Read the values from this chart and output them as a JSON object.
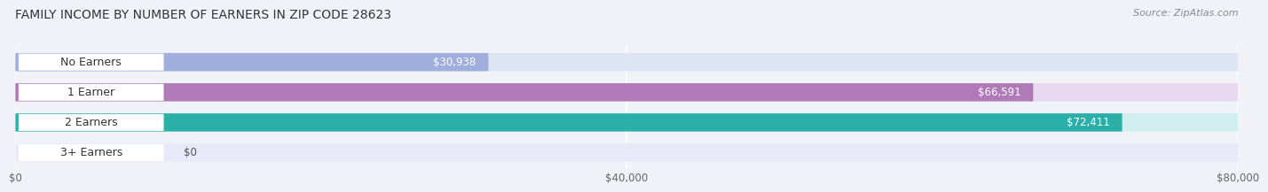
{
  "title": "FAMILY INCOME BY NUMBER OF EARNERS IN ZIP CODE 28623",
  "source": "Source: ZipAtlas.com",
  "categories": [
    "No Earners",
    "1 Earner",
    "2 Earners",
    "3+ Earners"
  ],
  "values": [
    30938,
    66591,
    72411,
    0
  ],
  "bar_colors": [
    "#a0aede",
    "#b07ab8",
    "#2ab0a8",
    "#b8b8e0"
  ],
  "bar_bg_colors": [
    "#dde4f4",
    "#e8d8f0",
    "#d0eeee",
    "#e8e8f8"
  ],
  "max_value": 80000,
  "xlim": [
    0,
    80000
  ],
  "xticks": [
    0,
    40000,
    80000
  ],
  "xtick_labels": [
    "$0",
    "$40,000",
    "$80,000"
  ],
  "background_color": "#f0f2f8",
  "title_fontsize": 10,
  "source_fontsize": 8,
  "label_fontsize": 9,
  "value_fontsize": 8.5
}
